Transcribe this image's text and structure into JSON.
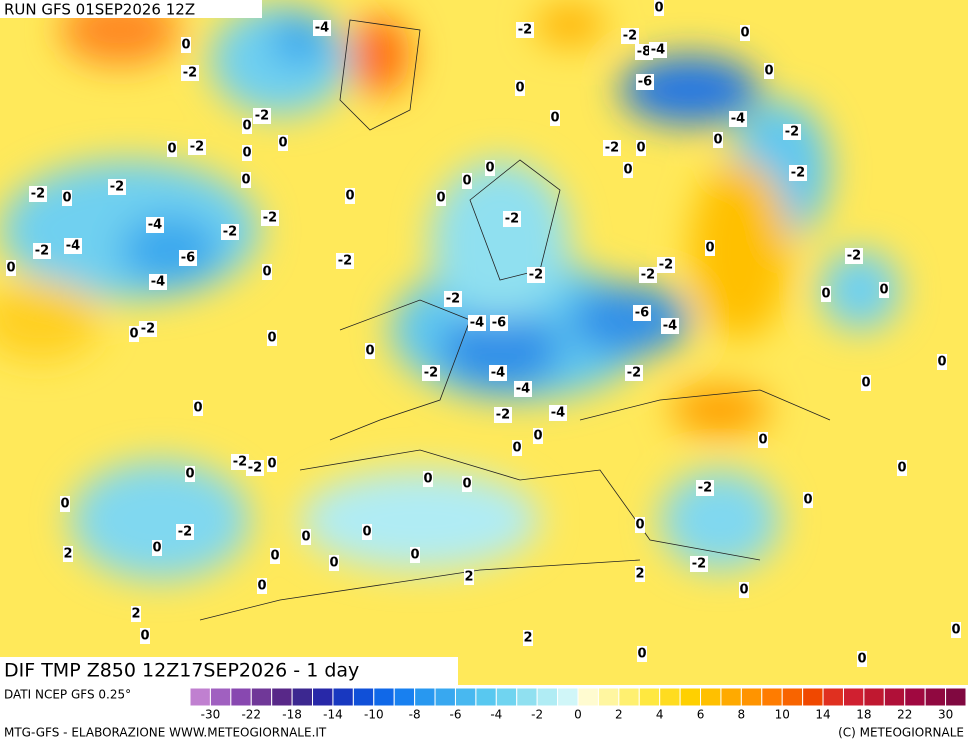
{
  "header": {
    "run": "RUN GFS 01SEP2026 12Z"
  },
  "map": {
    "title": "DIF TMP Z850 12Z17SEP2026 - 1 day",
    "labels": [
      "-4",
      "0",
      "-2",
      "-2",
      "0",
      "0",
      "-2",
      "0",
      "0",
      "0",
      "-2",
      "-2",
      "0",
      "-4",
      "-2",
      "-2",
      "-2",
      "-4",
      "-6",
      "0",
      "0",
      "-4",
      "-2",
      "-2",
      "0",
      "0",
      "0",
      "-2",
      "-2",
      "-4",
      "-6",
      "-4",
      "-4",
      "-4",
      "-2",
      "0",
      "0",
      "-2",
      "-6",
      "-4",
      "-2",
      "-2",
      "-2",
      "-2",
      "0",
      "0",
      "0",
      "0",
      "-2",
      "0",
      "0",
      "-2",
      "0",
      "0",
      "-2",
      "-8",
      "-4",
      "-6",
      "0",
      "0",
      "0",
      "-4",
      "0",
      "-2",
      "-2",
      "0",
      "-2",
      "0",
      "0",
      "0",
      "0",
      "0",
      "-2",
      "-2",
      "0",
      "0",
      "0",
      "-2",
      "0",
      "2",
      "0",
      "0",
      "0",
      "0",
      "0",
      "0",
      "0",
      "-2",
      "0",
      "0",
      "0",
      "-2",
      "2",
      "2",
      "0",
      "0",
      "2",
      "0",
      "2",
      "0",
      "0",
      "0",
      "0"
    ]
  },
  "colorbar": {
    "ticks": [
      -30,
      -22,
      -18,
      -14,
      -10,
      -8,
      -6,
      -4,
      -2,
      0,
      2,
      4,
      6,
      8,
      10,
      14,
      18,
      22,
      30
    ],
    "colors": [
      "#c080d0",
      "#a060c0",
      "#8848b0",
      "#703898",
      "#582888",
      "#3c2890",
      "#2828a8",
      "#1838c0",
      "#1050d8",
      "#1068e8",
      "#1880f0",
      "#2898f0",
      "#38a8f0",
      "#48b8f0",
      "#58c8f0",
      "#70d4f0",
      "#90e0f0",
      "#b0ecf4",
      "#d0f6f8",
      "#fffbd0",
      "#fff6a0",
      "#fff070",
      "#ffe840",
      "#ffdc20",
      "#ffd000",
      "#ffc000",
      "#ffaa00",
      "#ff9400",
      "#ff7c00",
      "#f86400",
      "#f04800",
      "#e03020",
      "#d02030",
      "#c01830",
      "#b01038",
      "#a00840",
      "#900840",
      "#800840"
    ]
  },
  "footer": {
    "source": "DATI NCEP GFS 0.25°",
    "credit": "MTG-GFS - ELABORAZIONE WWW.METEOGIORNALE.IT",
    "copyright": "(C) METEOGIORNALE"
  }
}
